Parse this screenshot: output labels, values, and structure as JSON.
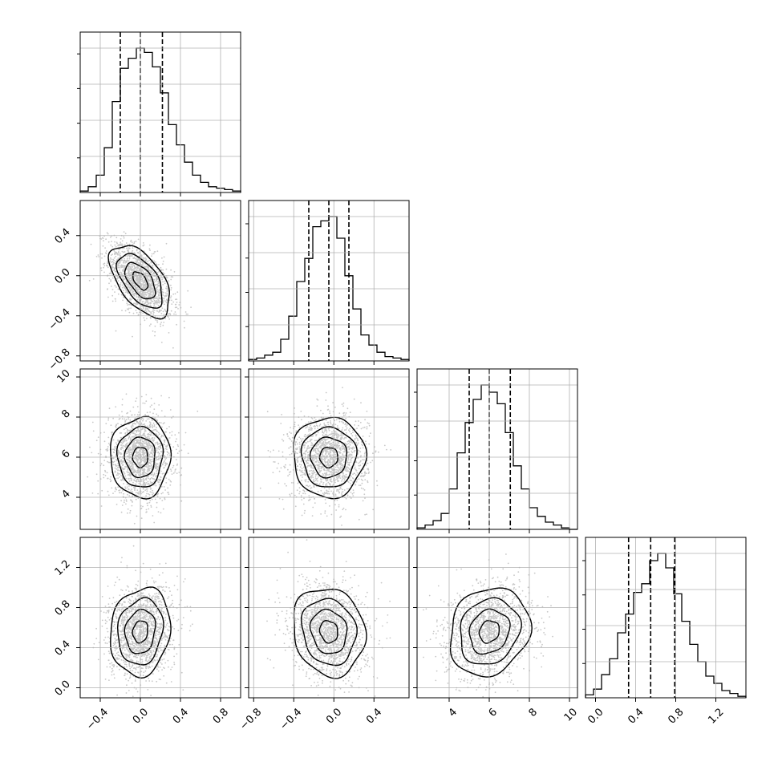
{
  "chart_data": {
    "type": "corner",
    "title": "",
    "grid": true,
    "parameters": [
      {
        "index": 0,
        "range": [
          -0.6,
          1.0
        ],
        "ticks": [
          -0.4,
          0.0,
          0.4,
          0.8
        ],
        "tick_labels": [
          "−0.4",
          "0.0",
          "0.4",
          "0.8"
        ],
        "quantiles": [
          -0.2,
          0.0,
          0.22
        ],
        "hist": [
          0.01,
          0.04,
          0.12,
          0.31,
          0.63,
          0.86,
          0.93,
          1.0,
          0.97,
          0.87,
          0.69,
          0.47,
          0.33,
          0.21,
          0.12,
          0.07,
          0.04,
          0.03,
          0.02,
          0.01
        ],
        "mean": 0.0,
        "sd": 0.15
      },
      {
        "index": 1,
        "range": [
          -0.85,
          0.75
        ],
        "ticks": [
          -0.8,
          -0.4,
          0.0,
          0.4
        ],
        "tick_labels": [
          "−0.8",
          "−0.4",
          "0.0",
          "0.4"
        ],
        "quantiles": [
          -0.25,
          -0.05,
          0.15
        ],
        "hist": [
          0.01,
          0.02,
          0.04,
          0.06,
          0.15,
          0.31,
          0.55,
          0.71,
          0.93,
          0.97,
          1.0,
          0.85,
          0.59,
          0.36,
          0.18,
          0.11,
          0.06,
          0.03,
          0.02,
          0.01
        ],
        "mean": -0.05,
        "sd": 0.18
      },
      {
        "index": 2,
        "range": [
          2.4,
          10.4
        ],
        "ticks": [
          4,
          6,
          8,
          10
        ],
        "tick_labels": [
          "4",
          "6",
          "8",
          "10"
        ],
        "quantiles": [
          5.0,
          6.0,
          7.05
        ],
        "hist": [
          0.01,
          0.03,
          0.06,
          0.11,
          0.28,
          0.53,
          0.74,
          0.9,
          1.0,
          0.95,
          0.87,
          0.67,
          0.44,
          0.28,
          0.15,
          0.09,
          0.05,
          0.03,
          0.01,
          0.0
        ],
        "mean": 6.0,
        "sd": 1.0
      },
      {
        "index": 3,
        "range": [
          -0.1,
          1.5
        ],
        "ticks": [
          0.0,
          0.4,
          0.8,
          1.2
        ],
        "tick_labels": [
          "0.0",
          "0.4",
          "0.8",
          "1.2"
        ],
        "quantiles": [
          0.33,
          0.55,
          0.79
        ],
        "hist": [
          0.02,
          0.06,
          0.16,
          0.27,
          0.45,
          0.58,
          0.73,
          0.79,
          0.95,
          1.0,
          0.9,
          0.72,
          0.53,
          0.37,
          0.25,
          0.15,
          0.1,
          0.05,
          0.03,
          0.01
        ],
        "mean": 0.56,
        "sd": 0.22
      }
    ],
    "correlations": {
      "1-0": -0.55,
      "2-0": 0.0,
      "2-1": 0.0,
      "3-0": 0.12,
      "3-1": -0.12,
      "3-2": 0.15
    },
    "contour_levels_sigma": [
      0.5,
      1.0,
      1.5,
      2.0
    ],
    "colors": {
      "hist_line": "#000000",
      "quantile_line": "#000000",
      "grid": "#b0b0b0",
      "scatter": "#c8c8c8",
      "density_max": "#000000"
    }
  }
}
